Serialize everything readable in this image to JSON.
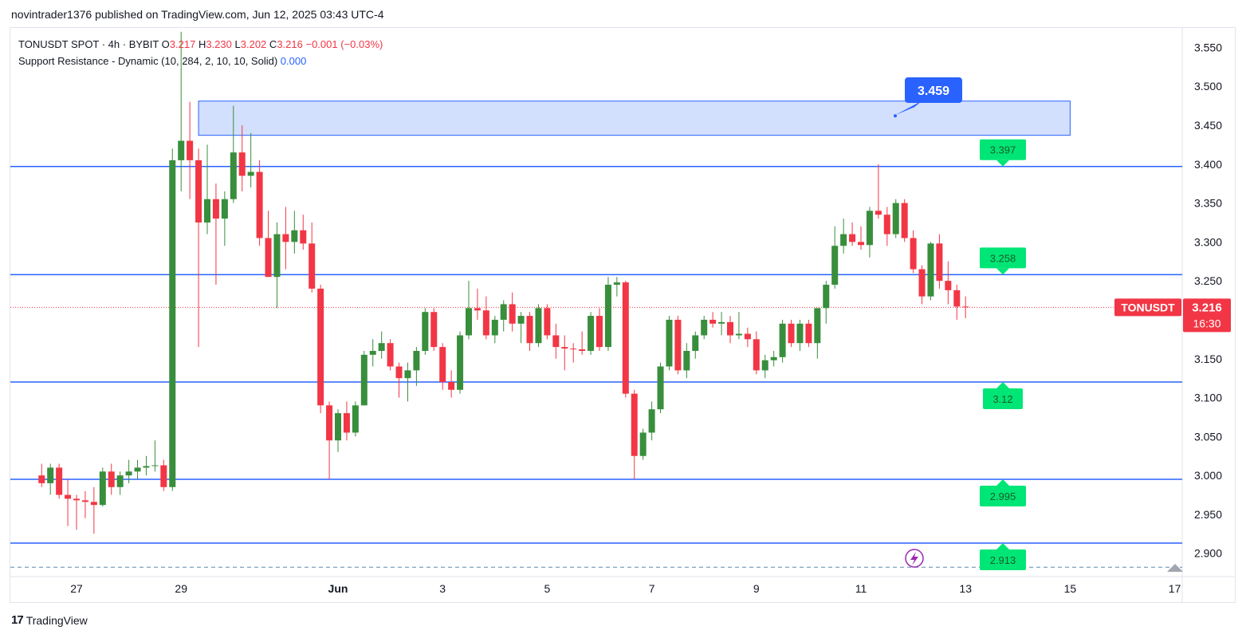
{
  "publisher_line": "novintrader1376 published on TradingView.com, Jun 12, 2025 03:43 UTC-4",
  "legend": {
    "symbol": "TONUSDT SPOT · 4h · BYBIT",
    "o_label": "O",
    "o_value": "3.217",
    "h_label": "H",
    "h_value": "3.230",
    "l_label": "L",
    "l_value": "3.202",
    "c_label": "C",
    "c_value": "3.216",
    "change": "−0.001 (−0.03%)",
    "indicator": "Support Resistance - Dynamic (10, 284, 2, 10, 10, Solid)",
    "indicator_value": "0.000"
  },
  "footer": {
    "logo": "17",
    "brand": "TradingView"
  },
  "colors": {
    "up": "#388e3c",
    "down": "#f23645",
    "level_line": "#2962ff",
    "level_label": "#00e676",
    "zone_fill": "#d2dffd",
    "callout": "#2962ff"
  },
  "chart_data": {
    "type": "candlestick",
    "timeframe": "4h",
    "ylim": [
      2.87,
      3.575
    ],
    "y_ticks": [
      "3.550",
      "3.500",
      "3.450",
      "3.400",
      "3.350",
      "3.300",
      "3.250",
      "3.200",
      "3.150",
      "3.100",
      "3.050",
      "3.000",
      "2.950",
      "2.900"
    ],
    "x_ticks": [
      {
        "label": "27",
        "date": "2025-05-27"
      },
      {
        "label": "29",
        "date": "2025-05-29"
      },
      {
        "label": "Jun",
        "date": "2025-06-01"
      },
      {
        "label": "3",
        "date": "2025-06-03"
      },
      {
        "label": "5",
        "date": "2025-06-05"
      },
      {
        "label": "7",
        "date": "2025-06-07"
      },
      {
        "label": "9",
        "date": "2025-06-09"
      },
      {
        "label": "11",
        "date": "2025-06-11"
      },
      {
        "label": "13",
        "date": "2025-06-13"
      },
      {
        "label": "15",
        "date": "2025-06-15"
      },
      {
        "label": "17",
        "date": "2025-06-17"
      }
    ],
    "candles": [
      {
        "t": "2025-05-26 08:00",
        "o": 3.0,
        "h": 3.015,
        "l": 2.985,
        "c": 2.99
      },
      {
        "t": "2025-05-26 12:00",
        "o": 2.99,
        "h": 3.015,
        "l": 2.975,
        "c": 3.01
      },
      {
        "t": "2025-05-26 16:00",
        "o": 3.01,
        "h": 3.015,
        "l": 2.97,
        "c": 2.975
      },
      {
        "t": "2025-05-26 20:00",
        "o": 2.975,
        "h": 2.995,
        "l": 2.935,
        "c": 2.97
      },
      {
        "t": "2025-05-27 00:00",
        "o": 2.97,
        "h": 2.975,
        "l": 2.93,
        "c": 2.968
      },
      {
        "t": "2025-05-27 04:00",
        "o": 2.968,
        "h": 2.98,
        "l": 2.945,
        "c": 2.966
      },
      {
        "t": "2025-05-27 08:00",
        "o": 2.966,
        "h": 2.985,
        "l": 2.925,
        "c": 2.962
      },
      {
        "t": "2025-05-27 12:00",
        "o": 2.962,
        "h": 3.01,
        "l": 2.96,
        "c": 3.005
      },
      {
        "t": "2025-05-27 16:00",
        "o": 3.005,
        "h": 3.015,
        "l": 2.975,
        "c": 2.985
      },
      {
        "t": "2025-05-27 20:00",
        "o": 2.985,
        "h": 3.005,
        "l": 2.975,
        "c": 3.0
      },
      {
        "t": "2025-05-28 00:00",
        "o": 3.0,
        "h": 3.02,
        "l": 2.99,
        "c": 3.005
      },
      {
        "t": "2025-05-28 04:00",
        "o": 3.005,
        "h": 3.02,
        "l": 2.995,
        "c": 3.01
      },
      {
        "t": "2025-05-28 08:00",
        "o": 3.01,
        "h": 3.025,
        "l": 3.0,
        "c": 3.012
      },
      {
        "t": "2025-05-28 12:00",
        "o": 3.012,
        "h": 3.045,
        "l": 3.005,
        "c": 3.013
      },
      {
        "t": "2025-05-28 16:00",
        "o": 3.013,
        "h": 3.02,
        "l": 2.98,
        "c": 2.985
      },
      {
        "t": "2025-05-28 20:00",
        "o": 2.985,
        "h": 3.42,
        "l": 2.98,
        "c": 3.405
      },
      {
        "t": "2025-05-29 00:00",
        "o": 3.405,
        "h": 3.57,
        "l": 3.365,
        "c": 3.43
      },
      {
        "t": "2025-05-29 04:00",
        "o": 3.43,
        "h": 3.48,
        "l": 3.355,
        "c": 3.405
      },
      {
        "t": "2025-05-29 08:00",
        "o": 3.405,
        "h": 3.42,
        "l": 3.165,
        "c": 3.325
      },
      {
        "t": "2025-05-29 12:00",
        "o": 3.325,
        "h": 3.425,
        "l": 3.31,
        "c": 3.355
      },
      {
        "t": "2025-05-29 16:00",
        "o": 3.355,
        "h": 3.375,
        "l": 3.245,
        "c": 3.33
      },
      {
        "t": "2025-05-29 20:00",
        "o": 3.33,
        "h": 3.365,
        "l": 3.295,
        "c": 3.355
      },
      {
        "t": "2025-05-30 00:00",
        "o": 3.355,
        "h": 3.475,
        "l": 3.35,
        "c": 3.415
      },
      {
        "t": "2025-05-30 04:00",
        "o": 3.415,
        "h": 3.45,
        "l": 3.365,
        "c": 3.385
      },
      {
        "t": "2025-05-30 08:00",
        "o": 3.385,
        "h": 3.44,
        "l": 3.37,
        "c": 3.39
      },
      {
        "t": "2025-05-30 12:00",
        "o": 3.39,
        "h": 3.405,
        "l": 3.295,
        "c": 3.305
      },
      {
        "t": "2025-05-30 16:00",
        "o": 3.305,
        "h": 3.34,
        "l": 3.255,
        "c": 3.255
      },
      {
        "t": "2025-05-30 20:00",
        "o": 3.255,
        "h": 3.325,
        "l": 3.215,
        "c": 3.31
      },
      {
        "t": "2025-05-31 00:00",
        "o": 3.31,
        "h": 3.345,
        "l": 3.265,
        "c": 3.3
      },
      {
        "t": "2025-05-31 04:00",
        "o": 3.3,
        "h": 3.34,
        "l": 3.285,
        "c": 3.315
      },
      {
        "t": "2025-05-31 08:00",
        "o": 3.315,
        "h": 3.335,
        "l": 3.29,
        "c": 3.298
      },
      {
        "t": "2025-05-31 12:00",
        "o": 3.298,
        "h": 3.325,
        "l": 3.235,
        "c": 3.24
      },
      {
        "t": "2025-05-31 16:00",
        "o": 3.24,
        "h": 3.245,
        "l": 3.08,
        "c": 3.09
      },
      {
        "t": "2025-05-31 20:00",
        "o": 3.09,
        "h": 3.095,
        "l": 2.995,
        "c": 3.045
      },
      {
        "t": "2025-06-01 00:00",
        "o": 3.045,
        "h": 3.085,
        "l": 3.03,
        "c": 3.08
      },
      {
        "t": "2025-06-01 04:00",
        "o": 3.08,
        "h": 3.095,
        "l": 3.045,
        "c": 3.055
      },
      {
        "t": "2025-06-01 08:00",
        "o": 3.055,
        "h": 3.095,
        "l": 3.05,
        "c": 3.09
      },
      {
        "t": "2025-06-01 12:00",
        "o": 3.09,
        "h": 3.16,
        "l": 3.09,
        "c": 3.155
      },
      {
        "t": "2025-06-01 16:00",
        "o": 3.155,
        "h": 3.175,
        "l": 3.14,
        "c": 3.16
      },
      {
        "t": "2025-06-01 20:00",
        "o": 3.16,
        "h": 3.185,
        "l": 3.15,
        "c": 3.17
      },
      {
        "t": "2025-06-02 00:00",
        "o": 3.17,
        "h": 3.175,
        "l": 3.135,
        "c": 3.14
      },
      {
        "t": "2025-06-02 04:00",
        "o": 3.14,
        "h": 3.145,
        "l": 3.1,
        "c": 3.125
      },
      {
        "t": "2025-06-02 08:00",
        "o": 3.125,
        "h": 3.145,
        "l": 3.095,
        "c": 3.135
      },
      {
        "t": "2025-06-02 12:00",
        "o": 3.135,
        "h": 3.165,
        "l": 3.115,
        "c": 3.16
      },
      {
        "t": "2025-06-02 16:00",
        "o": 3.16,
        "h": 3.215,
        "l": 3.155,
        "c": 3.21
      },
      {
        "t": "2025-06-02 20:00",
        "o": 3.21,
        "h": 3.215,
        "l": 3.16,
        "c": 3.165
      },
      {
        "t": "2025-06-03 00:00",
        "o": 3.165,
        "h": 3.17,
        "l": 3.11,
        "c": 3.12
      },
      {
        "t": "2025-06-03 04:00",
        "o": 3.12,
        "h": 3.135,
        "l": 3.1,
        "c": 3.11
      },
      {
        "t": "2025-06-03 08:00",
        "o": 3.11,
        "h": 3.185,
        "l": 3.105,
        "c": 3.18
      },
      {
        "t": "2025-06-03 12:00",
        "o": 3.18,
        "h": 3.25,
        "l": 3.175,
        "c": 3.215
      },
      {
        "t": "2025-06-03 16:00",
        "o": 3.215,
        "h": 3.24,
        "l": 3.2,
        "c": 3.212
      },
      {
        "t": "2025-06-03 20:00",
        "o": 3.212,
        "h": 3.23,
        "l": 3.175,
        "c": 3.18
      },
      {
        "t": "2025-06-04 00:00",
        "o": 3.18,
        "h": 3.205,
        "l": 3.17,
        "c": 3.2
      },
      {
        "t": "2025-06-04 04:00",
        "o": 3.2,
        "h": 3.225,
        "l": 3.185,
        "c": 3.22
      },
      {
        "t": "2025-06-04 08:00",
        "o": 3.22,
        "h": 3.235,
        "l": 3.185,
        "c": 3.195
      },
      {
        "t": "2025-06-04 12:00",
        "o": 3.195,
        "h": 3.21,
        "l": 3.17,
        "c": 3.205
      },
      {
        "t": "2025-06-04 16:00",
        "o": 3.205,
        "h": 3.21,
        "l": 3.16,
        "c": 3.17
      },
      {
        "t": "2025-06-04 20:00",
        "o": 3.17,
        "h": 3.22,
        "l": 3.165,
        "c": 3.215
      },
      {
        "t": "2025-06-05 00:00",
        "o": 3.215,
        "h": 3.22,
        "l": 3.175,
        "c": 3.18
      },
      {
        "t": "2025-06-05 04:00",
        "o": 3.18,
        "h": 3.195,
        "l": 3.15,
        "c": 3.165
      },
      {
        "t": "2025-06-05 08:00",
        "o": 3.165,
        "h": 3.18,
        "l": 3.135,
        "c": 3.163
      },
      {
        "t": "2025-06-05 12:00",
        "o": 3.163,
        "h": 3.17,
        "l": 3.145,
        "c": 3.162
      },
      {
        "t": "2025-06-05 16:00",
        "o": 3.162,
        "h": 3.185,
        "l": 3.155,
        "c": 3.16
      },
      {
        "t": "2025-06-05 20:00",
        "o": 3.16,
        "h": 3.21,
        "l": 3.155,
        "c": 3.205
      },
      {
        "t": "2025-06-06 00:00",
        "o": 3.205,
        "h": 3.215,
        "l": 3.16,
        "c": 3.165
      },
      {
        "t": "2025-06-06 04:00",
        "o": 3.165,
        "h": 3.255,
        "l": 3.16,
        "c": 3.245
      },
      {
        "t": "2025-06-06 08:00",
        "o": 3.245,
        "h": 3.255,
        "l": 3.23,
        "c": 3.248
      },
      {
        "t": "2025-06-06 12:00",
        "o": 3.248,
        "h": 3.25,
        "l": 3.1,
        "c": 3.105
      },
      {
        "t": "2025-06-06 16:00",
        "o": 3.105,
        "h": 3.11,
        "l": 2.995,
        "c": 3.025
      },
      {
        "t": "2025-06-06 20:00",
        "o": 3.025,
        "h": 3.06,
        "l": 3.02,
        "c": 3.055
      },
      {
        "t": "2025-06-07 00:00",
        "o": 3.055,
        "h": 3.095,
        "l": 3.045,
        "c": 3.085
      },
      {
        "t": "2025-06-07 04:00",
        "o": 3.085,
        "h": 3.145,
        "l": 3.08,
        "c": 3.14
      },
      {
        "t": "2025-06-07 08:00",
        "o": 3.14,
        "h": 3.205,
        "l": 3.135,
        "c": 3.2
      },
      {
        "t": "2025-06-07 12:00",
        "o": 3.2,
        "h": 3.205,
        "l": 3.13,
        "c": 3.135
      },
      {
        "t": "2025-06-07 16:00",
        "o": 3.135,
        "h": 3.17,
        "l": 3.125,
        "c": 3.16
      },
      {
        "t": "2025-06-07 20:00",
        "o": 3.16,
        "h": 3.185,
        "l": 3.15,
        "c": 3.18
      },
      {
        "t": "2025-06-08 00:00",
        "o": 3.18,
        "h": 3.205,
        "l": 3.175,
        "c": 3.2
      },
      {
        "t": "2025-06-08 04:00",
        "o": 3.2,
        "h": 3.21,
        "l": 3.19,
        "c": 3.195
      },
      {
        "t": "2025-06-08 08:00",
        "o": 3.195,
        "h": 3.21,
        "l": 3.18,
        "c": 3.197
      },
      {
        "t": "2025-06-08 12:00",
        "o": 3.197,
        "h": 3.205,
        "l": 3.17,
        "c": 3.18
      },
      {
        "t": "2025-06-08 16:00",
        "o": 3.18,
        "h": 3.21,
        "l": 3.175,
        "c": 3.182
      },
      {
        "t": "2025-06-08 20:00",
        "o": 3.182,
        "h": 3.19,
        "l": 3.165,
        "c": 3.175
      },
      {
        "t": "2025-06-09 00:00",
        "o": 3.175,
        "h": 3.185,
        "l": 3.13,
        "c": 3.135
      },
      {
        "t": "2025-06-09 04:00",
        "o": 3.135,
        "h": 3.155,
        "l": 3.125,
        "c": 3.148
      },
      {
        "t": "2025-06-09 08:00",
        "o": 3.148,
        "h": 3.16,
        "l": 3.14,
        "c": 3.152
      },
      {
        "t": "2025-06-09 12:00",
        "o": 3.152,
        "h": 3.2,
        "l": 3.145,
        "c": 3.195
      },
      {
        "t": "2025-06-09 16:00",
        "o": 3.195,
        "h": 3.2,
        "l": 3.165,
        "c": 3.17
      },
      {
        "t": "2025-06-09 20:00",
        "o": 3.17,
        "h": 3.2,
        "l": 3.16,
        "c": 3.195
      },
      {
        "t": "2025-06-10 00:00",
        "o": 3.195,
        "h": 3.2,
        "l": 3.165,
        "c": 3.17
      },
      {
        "t": "2025-06-10 04:00",
        "o": 3.17,
        "h": 3.215,
        "l": 3.15,
        "c": 3.215
      },
      {
        "t": "2025-06-10 08:00",
        "o": 3.215,
        "h": 3.25,
        "l": 3.195,
        "c": 3.245
      },
      {
        "t": "2025-06-10 12:00",
        "o": 3.245,
        "h": 3.32,
        "l": 3.24,
        "c": 3.295
      },
      {
        "t": "2025-06-10 16:00",
        "o": 3.295,
        "h": 3.33,
        "l": 3.285,
        "c": 3.31
      },
      {
        "t": "2025-06-10 20:00",
        "o": 3.31,
        "h": 3.325,
        "l": 3.295,
        "c": 3.3
      },
      {
        "t": "2025-06-11 00:00",
        "o": 3.3,
        "h": 3.32,
        "l": 3.29,
        "c": 3.296
      },
      {
        "t": "2025-06-11 04:00",
        "o": 3.296,
        "h": 3.345,
        "l": 3.28,
        "c": 3.34
      },
      {
        "t": "2025-06-11 08:00",
        "o": 3.34,
        "h": 3.4,
        "l": 3.33,
        "c": 3.335
      },
      {
        "t": "2025-06-11 12:00",
        "o": 3.335,
        "h": 3.345,
        "l": 3.295,
        "c": 3.31
      },
      {
        "t": "2025-06-11 16:00",
        "o": 3.31,
        "h": 3.355,
        "l": 3.305,
        "c": 3.35
      },
      {
        "t": "2025-06-11 20:00",
        "o": 3.35,
        "h": 3.355,
        "l": 3.3,
        "c": 3.305
      },
      {
        "t": "2025-06-12 00:00",
        "o": 3.305,
        "h": 3.315,
        "l": 3.26,
        "c": 3.265
      },
      {
        "t": "2025-06-12 04:00",
        "o": 3.265,
        "h": 3.27,
        "l": 3.22,
        "c": 3.23
      },
      {
        "t": "2025-06-12 08:00",
        "o": 3.23,
        "h": 3.3,
        "l": 3.225,
        "c": 3.298
      },
      {
        "t": "2025-06-12 12:00",
        "o": 3.298,
        "h": 3.31,
        "l": 3.24,
        "c": 3.25
      },
      {
        "t": "2025-06-12 16:00",
        "o": 3.25,
        "h": 3.275,
        "l": 3.22,
        "c": 3.238
      },
      {
        "t": "2025-06-12 20:00",
        "o": 3.238,
        "h": 3.245,
        "l": 3.2,
        "c": 3.217
      },
      {
        "t": "2025-06-13 00:00",
        "o": 3.217,
        "h": 3.23,
        "l": 3.202,
        "c": 3.216
      }
    ],
    "levels": [
      {
        "value": 3.397,
        "label": "3.397",
        "style": "solid",
        "tag": "above"
      },
      {
        "value": 3.258,
        "label": "3.258",
        "style": "solid",
        "tag": "above"
      },
      {
        "value": 3.12,
        "label": "3.12",
        "style": "solid",
        "tag": "below"
      },
      {
        "value": 2.995,
        "label": "2.995",
        "style": "solid",
        "tag": "below"
      },
      {
        "value": 2.913,
        "label": "2.913",
        "style": "solid",
        "tag": "below"
      },
      {
        "value": 2.882,
        "label": "",
        "style": "dashed",
        "tag": "none"
      }
    ],
    "zone": {
      "start": "2025-05-29 08:00",
      "end": "2025-06-15 00:00",
      "top": 3.481,
      "bottom": 3.437
    },
    "callout": {
      "label": "3.459",
      "value": 3.459
    },
    "current_price": {
      "value": 3.216,
      "label": "3.216",
      "symbol_tag": "TONUSDT",
      "countdown": "16:30"
    }
  }
}
